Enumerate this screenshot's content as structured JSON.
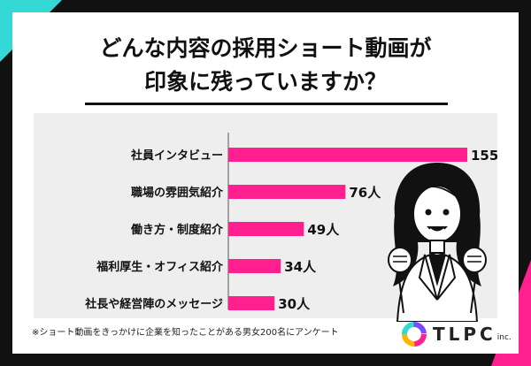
{
  "title": {
    "line1": "どんな内容の採用ショート動画が",
    "line2": "印象に残っていますか？"
  },
  "chart_data": {
    "type": "bar",
    "orientation": "horizontal",
    "categories": [
      "社員インタビュー",
      "職場の雰囲気紹介",
      "働き方・制度紹介",
      "福利厚生・オフィス紹介",
      "社長や経営陣のメッセージ"
    ],
    "values": [
      155,
      76,
      49,
      34,
      30
    ],
    "value_labels": [
      "155人",
      "76人",
      "49人",
      "34人",
      "30人"
    ],
    "unit": "人",
    "xlim": [
      0,
      155
    ],
    "grid": false,
    "bar_color": "#ff1f8f"
  },
  "footnote": "※ショート動画をきっかけに企業を知ったことがある男女200名にアンケート",
  "logo": {
    "text": "TLPC",
    "suffix": "inc."
  },
  "colors": {
    "accent_cyan": "#34d8d4",
    "accent_pink": "#ff1f8f",
    "background": "#111111"
  },
  "illustration": "smiling-woman-illustration"
}
